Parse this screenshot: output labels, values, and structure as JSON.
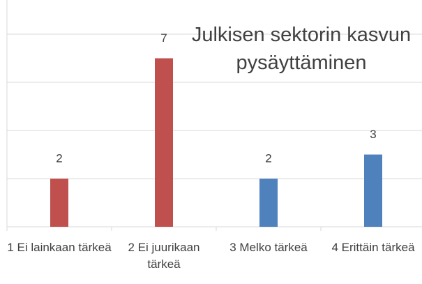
{
  "chart_data": {
    "type": "bar",
    "title": "Julkisen sektorin kasvun pysäyttäminen",
    "categories": [
      "1 Ei lainkaan tärkeä",
      "2 Ei juurikaan tärkeä",
      "3 Melko tärkeä",
      "4 Erittäin tärkeä"
    ],
    "values": [
      2,
      7,
      2,
      3
    ],
    "colors": [
      "#c0504d",
      "#c0504d",
      "#4f81bd",
      "#4f81bd"
    ],
    "ylim": [
      0,
      8
    ],
    "yticks": [
      0,
      2,
      4,
      6,
      8
    ],
    "grid": true
  }
}
